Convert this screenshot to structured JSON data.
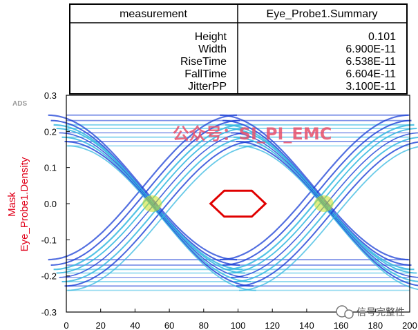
{
  "table": {
    "headers": [
      "measurement",
      "Eye_Probe1.Summary"
    ],
    "rows": [
      {
        "name": "Height",
        "value": "0.101"
      },
      {
        "name": "Width",
        "value": "6.900E-11"
      },
      {
        "name": "RiseTime",
        "value": "6.538E-11"
      },
      {
        "name": "FallTime",
        "value": "6.604E-11"
      },
      {
        "name": "JitterPP",
        "value": "3.100E-11"
      }
    ]
  },
  "ads_label": "ADS",
  "watermark": "公众号：SI_PI_EMC",
  "brand": "信号完整性",
  "chart_data": {
    "type": "eye-diagram",
    "ylabel_lines": [
      "Mask",
      "Eye_Probe1.Density"
    ],
    "xlim": [
      0,
      200
    ],
    "ylim": [
      -0.3,
      0.3
    ],
    "x_ticks": [
      0,
      20,
      40,
      60,
      80,
      100,
      120,
      140,
      160,
      180,
      200
    ],
    "y_ticks": [
      0.3,
      0.2,
      0.1,
      0.0,
      -0.1,
      -0.2,
      -0.3
    ],
    "y_tick_labels": [
      "0.3",
      "0.2",
      "0.1",
      "0.0",
      "-0.1",
      "-0.2",
      "-0.3"
    ],
    "signal_levels": {
      "high": 0.2,
      "low": -0.2
    },
    "crossings_x": [
      50,
      150
    ],
    "mask_polygon": [
      [
        84,
        0.0
      ],
      [
        92,
        0.036
      ],
      [
        108,
        0.036
      ],
      [
        116,
        0.0
      ],
      [
        108,
        -0.036
      ],
      [
        92,
        -0.036
      ]
    ],
    "colors": {
      "mask": "#e00000",
      "trace_dense": "#1a3fd6",
      "trace_mid": "#35b8e0",
      "trace_hot": "#c8e020",
      "axis_label": "#e0001a"
    }
  }
}
